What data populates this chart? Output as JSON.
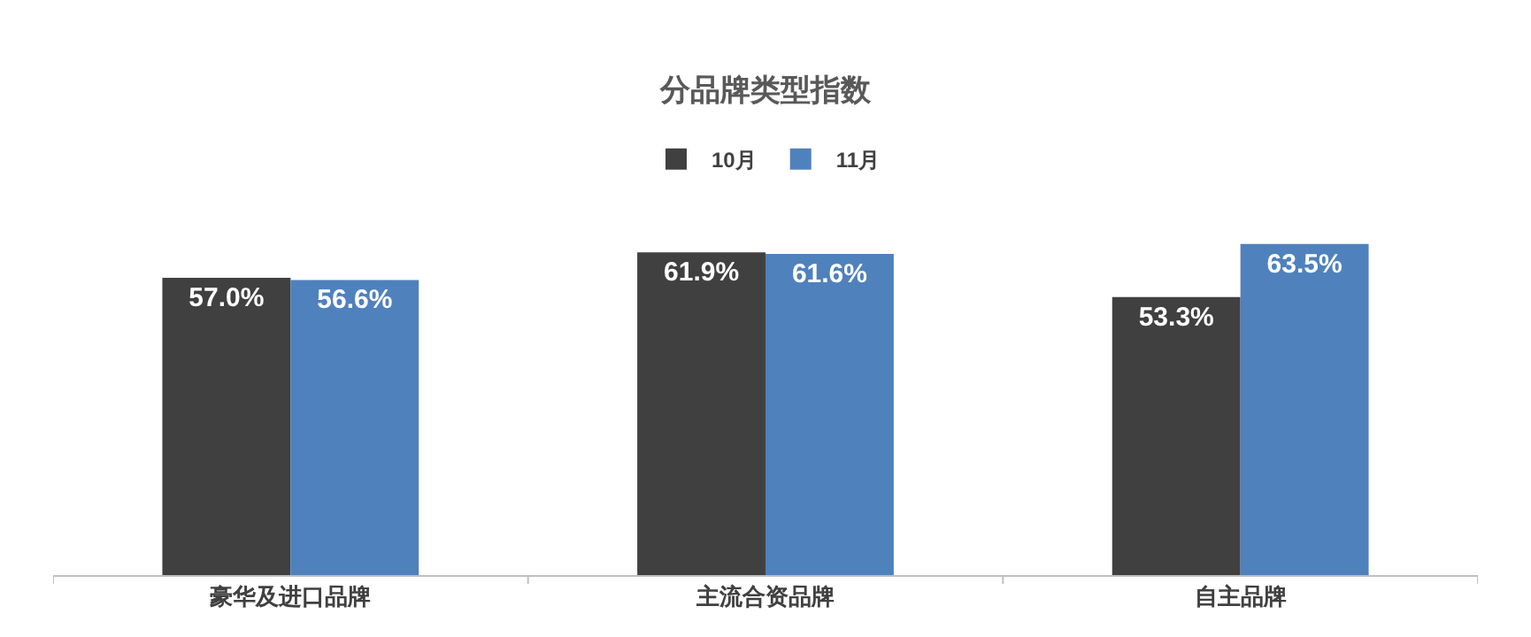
{
  "chart_data": {
    "type": "bar",
    "title": "分品牌类型指数",
    "categories": [
      "豪华及进口品牌",
      "主流合资品牌",
      "自主品牌"
    ],
    "series": [
      {
        "name": "10月",
        "color": "#404040",
        "values": [
          57.0,
          61.9,
          53.3
        ],
        "value_labels": [
          "57.0%",
          "61.9%",
          "53.3%"
        ]
      },
      {
        "name": "11月",
        "color": "#4f81bd",
        "values": [
          56.6,
          61.6,
          63.5
        ],
        "value_labels": [
          "56.6%",
          "61.6%",
          "63.5%"
        ]
      }
    ],
    "tick_labels": "x",
    "legend": "top"
  }
}
